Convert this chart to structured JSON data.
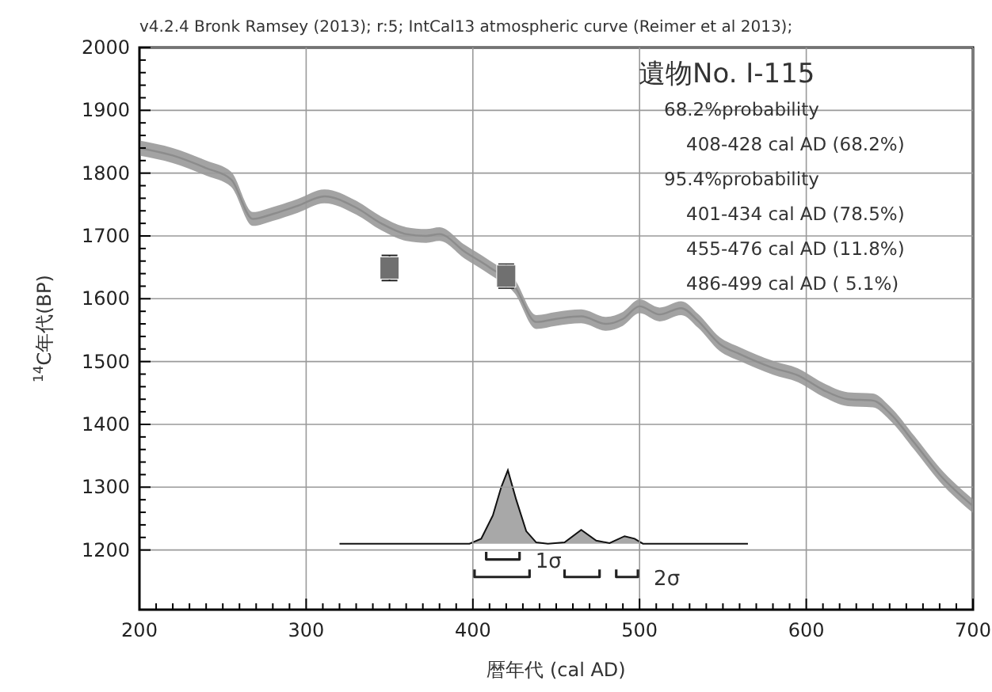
{
  "chart_data": {
    "type": "line",
    "title": "遺物No. Ⅰ-115",
    "subtitle": "v4.2.4 Bronk Ramsey (2013); r:5; IntCal13 atmospheric curve (Reimer et al 2013);",
    "xlabel": "暦年代 (cal AD)",
    "ylabel": "$^{14}$C年代(BP)",
    "annotations": [
      "68.2%probability",
      "408-428 cal AD (68.2%)",
      "95.4%probability",
      "401-434 cal AD (78.5%)",
      "455-476 cal AD (11.8%)",
      "486-499 cal AD ( 5.1%)"
    ],
    "xlim": [
      200,
      700
    ],
    "ylim": [
      1105,
      2000
    ],
    "xticks": [
      200,
      {
        "value": 210,
        "label": null
      },
      {
        "value": 220,
        "label": null
      },
      {
        "value": 230,
        "label": null
      },
      {
        "value": 240,
        "label": null
      },
      {
        "value": 250,
        "label": null
      },
      {
        "value": 260,
        "label": null
      },
      {
        "value": 270,
        "label": null
      },
      {
        "value": 280,
        "label": null
      },
      {
        "value": 290,
        "label": null
      },
      300,
      {
        "value": 310,
        "label": null
      },
      {
        "value": 320,
        "label": null
      },
      {
        "value": 330,
        "label": null
      },
      {
        "value": 340,
        "label": null
      },
      {
        "value": 350,
        "label": null
      },
      {
        "value": 360,
        "label": null
      },
      {
        "value": 370,
        "label": null
      },
      {
        "value": 380,
        "label": null
      },
      {
        "value": 390,
        "label": null
      },
      400,
      {
        "value": 410,
        "label": null
      },
      {
        "value": 420,
        "label": null
      },
      {
        "value": 430,
        "label": null
      },
      {
        "value": 440,
        "label": null
      },
      {
        "value": 450,
        "label": null
      },
      {
        "value": 460,
        "label": null
      },
      {
        "value": 470,
        "label": null
      },
      {
        "value": 480,
        "label": null
      },
      {
        "value": 490,
        "label": null
      },
      500,
      {
        "value": 510,
        "label": null
      },
      {
        "value": 520,
        "label": null
      },
      {
        "value": 530,
        "label": null
      },
      {
        "value": 540,
        "label": null
      },
      {
        "value": 550,
        "label": null
      },
      {
        "value": 560,
        "label": null
      },
      {
        "value": 570,
        "label": null
      },
      {
        "value": 580,
        "label": null
      },
      {
        "value": 590,
        "label": null
      },
      600,
      {
        "value": 610,
        "label": null
      },
      {
        "value": 620,
        "label": null
      },
      {
        "value": 630,
        "label": null
      },
      {
        "value": 640,
        "label": null
      },
      {
        "value": 650,
        "label": null
      },
      {
        "value": 660,
        "label": null
      },
      {
        "value": 670,
        "label": null
      },
      {
        "value": 680,
        "label": null
      },
      {
        "value": 690,
        "label": null
      },
      700
    ],
    "yticks": [
      1200,
      {
        "value": 1220,
        "label": null
      },
      {
        "value": 1240,
        "label": null
      },
      {
        "value": 1260,
        "label": null
      },
      {
        "value": 1280,
        "label": null
      },
      1300,
      {
        "value": 1320,
        "label": null
      },
      {
        "value": 1340,
        "label": null
      },
      {
        "value": 1360,
        "label": null
      },
      {
        "value": 1380,
        "label": null
      },
      1400,
      {
        "value": 1420,
        "label": null
      },
      {
        "value": 1440,
        "label": null
      },
      {
        "value": 1460,
        "label": null
      },
      {
        "value": 1480,
        "label": null
      },
      1500,
      {
        "value": 1520,
        "label": null
      },
      {
        "value": 1540,
        "label": null
      },
      {
        "value": 1560,
        "label": null
      },
      {
        "value": 1580,
        "label": null
      },
      1600,
      {
        "value": 1620,
        "label": null
      },
      {
        "value": 1640,
        "label": null
      },
      {
        "value": 1660,
        "label": null
      },
      {
        "value": 1680,
        "label": null
      },
      1700,
      {
        "value": 1720,
        "label": null
      },
      {
        "value": 1740,
        "label": null
      },
      {
        "value": 1760,
        "label": null
      },
      {
        "value": 1780,
        "label": null
      },
      1800,
      {
        "value": 1820,
        "label": null
      },
      {
        "value": 1840,
        "label": null
      },
      {
        "value": 1860,
        "label": null
      },
      {
        "value": 1880,
        "label": null
      },
      1900,
      {
        "value": 1920,
        "label": null
      },
      {
        "value": 1940,
        "label": null
      },
      {
        "value": 1960,
        "label": null
      },
      {
        "value": 1980,
        "label": null
      },
      2000
    ],
    "grid": true,
    "series": [
      {
        "color": "#8c8c8c",
        "x": [
          200,
          220,
          240,
          255,
          268,
          280,
          295,
          311,
          330,
          345,
          360,
          372,
          380,
          395,
          410,
          425,
          438,
          450,
          465,
          480,
          490,
          500,
          512,
          525,
          535,
          548,
          560,
          580,
          595,
          610,
          625,
          640,
          650,
          665,
          680,
          700
        ],
        "values": [
          1840,
          1828,
          1808,
          1790,
          1727,
          1735,
          1748,
          1763,
          1745,
          1720,
          1703,
          1700,
          1703,
          1675,
          1650,
          1620,
          1563,
          1568,
          1572,
          1560,
          1568,
          1588,
          1575,
          1585,
          1565,
          1528,
          1512,
          1490,
          1478,
          1455,
          1440,
          1438,
          1418,
          1370,
          1320,
          1270
        ],
        "lower": [
          1828,
          1816,
          1796,
          1778,
          1716,
          1724,
          1737,
          1752,
          1734,
          1709,
          1692,
          1689,
          1692,
          1664,
          1639,
          1609,
          1552,
          1557,
          1561,
          1549,
          1557,
          1577,
          1564,
          1574,
          1554,
          1517,
          1501,
          1479,
          1467,
          1444,
          1429,
          1427,
          1407,
          1359,
          1309,
          1259
        ],
        "upper": [
          1852,
          1840,
          1820,
          1802,
          1738,
          1746,
          1759,
          1774,
          1756,
          1731,
          1714,
          1711,
          1714,
          1686,
          1661,
          1631,
          1574,
          1579,
          1583,
          1571,
          1579,
          1599,
          1586,
          1596,
          1576,
          1539,
          1523,
          1501,
          1489,
          1466,
          1451,
          1449,
          1429,
          1381,
          1331,
          1281
        ]
      },
      {
        "type": "scatter",
        "color": "#707070",
        "marker": "square",
        "x": [
          350,
          420
        ],
        "values": [
          1649,
          1636
        ],
        "errors": [
          20,
          19
        ]
      },
      {
        "type": "area",
        "color": "#a8a8a8",
        "x": [
          320,
          398,
          405,
          412,
          417,
          421,
          426,
          432,
          438,
          445,
          455,
          465,
          474,
          482,
          491,
          497,
          502,
          565
        ],
        "values": [
          1210,
          1210,
          1218,
          1255,
          1300,
          1327,
          1280,
          1230,
          1212,
          1210,
          1212,
          1232,
          1215,
          1211,
          1222,
          1218,
          1210,
          1210
        ]
      },
      {
        "type": "line",
        "name": "1σ",
        "color": "#222222",
        "x": [
          408,
          408,
          428,
          428
        ],
        "values": [
          1197,
          1185,
          1185,
          1197
        ]
      },
      {
        "type": "line",
        "name": "2σ",
        "color": "#222222",
        "x": [
          401,
          401,
          434,
          434,
          445,
          455,
          455,
          476,
          476,
          481,
          486,
          486,
          499,
          499
        ],
        "values": [
          1169,
          1157,
          1157,
          1169,
          null,
          1169,
          1157,
          1157,
          1169,
          null,
          1169,
          1157,
          1157,
          1169
        ]
      }
    ]
  }
}
